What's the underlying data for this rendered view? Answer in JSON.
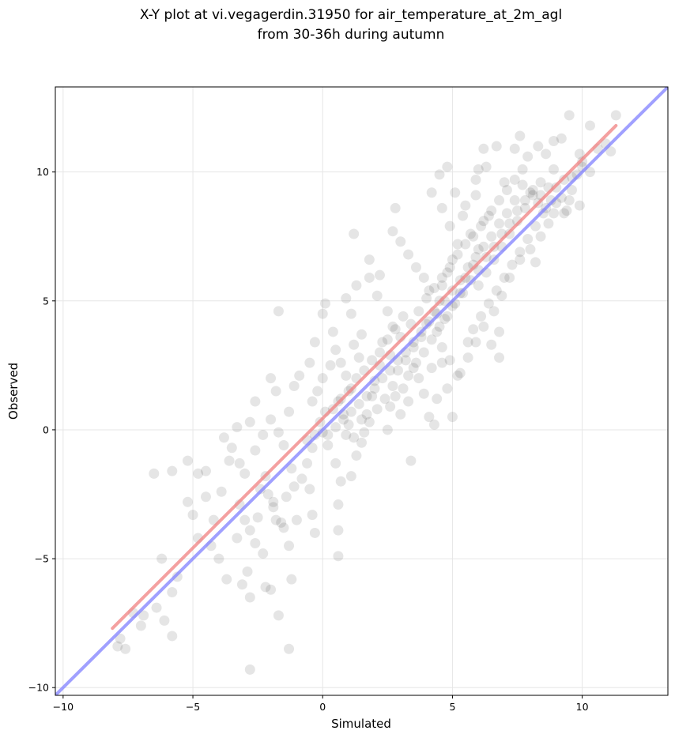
{
  "chart_data": {
    "type": "scatter",
    "title": "X-Y plot at vi.vegagerdin.31950 for air_temperature_at_2m_agl",
    "subtitle": "from 30-36h during autumn",
    "xlabel": "Simulated",
    "ylabel": "Observed",
    "xlim": [
      -10.3,
      13.3
    ],
    "ylim": [
      -10.3,
      13.3
    ],
    "xticks": [
      -10,
      -5,
      0,
      5,
      10
    ],
    "yticks": [
      -10,
      -5,
      0,
      5,
      10
    ],
    "xtick_labels": [
      "−10",
      "−5",
      "0",
      "5",
      "10"
    ],
    "ytick_labels": [
      "−10",
      "−5",
      "0",
      "5",
      "10"
    ],
    "grid": true,
    "point_color": "#000000",
    "point_alpha": 0.1,
    "regression_line": {
      "color": "#f08080",
      "x": [
        -8.1,
        11.3
      ],
      "y": [
        -7.7,
        11.8
      ]
    },
    "identity_line": {
      "color": "#8080ff",
      "x": [
        -10.3,
        13.3
      ],
      "y": [
        -10.3,
        13.3
      ]
    },
    "points": [
      [
        -7.9,
        -8.4
      ],
      [
        -7.6,
        -8.5
      ],
      [
        -7.8,
        -8.1
      ],
      [
        -7.3,
        -7.1
      ],
      [
        -7.0,
        -7.6
      ],
      [
        -6.9,
        -7.2
      ],
      [
        -6.4,
        -6.9
      ],
      [
        -6.1,
        -7.4
      ],
      [
        -5.8,
        -8.0
      ],
      [
        -5.8,
        -6.3
      ],
      [
        -5.6,
        -5.7
      ],
      [
        -6.2,
        -5.0
      ],
      [
        -6.5,
        -1.7
      ],
      [
        -5.8,
        -1.6
      ],
      [
        -5.2,
        -1.2
      ],
      [
        -4.8,
        -1.7
      ],
      [
        -4.5,
        -1.6
      ],
      [
        -5.2,
        -2.8
      ],
      [
        -5.0,
        -3.3
      ],
      [
        -4.8,
        -4.2
      ],
      [
        -4.2,
        -3.5
      ],
      [
        -4.5,
        -2.6
      ],
      [
        -3.9,
        -2.4
      ],
      [
        -3.6,
        -1.2
      ],
      [
        -3.2,
        -1.3
      ],
      [
        -3.5,
        -0.7
      ],
      [
        -3.8,
        -0.3
      ],
      [
        -3.3,
        0.1
      ],
      [
        -2.8,
        0.3
      ],
      [
        -2.6,
        1.1
      ],
      [
        -2.3,
        -0.2
      ],
      [
        -2.0,
        0.4
      ],
      [
        -1.8,
        1.5
      ],
      [
        -2.0,
        2.0
      ],
      [
        -1.7,
        -0.1
      ],
      [
        -1.5,
        -0.6
      ],
      [
        -1.3,
        0.7
      ],
      [
        -1.1,
        1.7
      ],
      [
        -0.9,
        2.1
      ],
      [
        -1.7,
        4.6
      ],
      [
        -3.2,
        -2.9
      ],
      [
        -3.0,
        -3.5
      ],
      [
        -2.8,
        -3.9
      ],
      [
        -2.6,
        -4.4
      ],
      [
        -2.3,
        -4.8
      ],
      [
        -2.9,
        -5.5
      ],
      [
        -3.1,
        -6.0
      ],
      [
        -2.8,
        -6.5
      ],
      [
        -2.2,
        -6.1
      ],
      [
        -2.0,
        -6.2
      ],
      [
        -1.7,
        -7.2
      ],
      [
        -1.3,
        -8.5
      ],
      [
        -2.8,
        -9.3
      ],
      [
        -1.2,
        -5.8
      ],
      [
        -1.3,
        -4.5
      ],
      [
        -1.5,
        -3.8
      ],
      [
        -1.8,
        -3.5
      ],
      [
        -1.9,
        -3.0
      ],
      [
        -2.1,
        -2.5
      ],
      [
        -1.4,
        -2.6
      ],
      [
        -1.1,
        -2.2
      ],
      [
        -1.2,
        -1.5
      ],
      [
        -0.8,
        -1.9
      ],
      [
        -0.6,
        -1.3
      ],
      [
        -0.4,
        -0.7
      ],
      [
        -0.5,
        -2.3
      ],
      [
        -0.4,
        -3.3
      ],
      [
        -0.3,
        -4.0
      ],
      [
        -1.0,
        -3.5
      ],
      [
        -4.3,
        -4.5
      ],
      [
        -3.7,
        -5.8
      ],
      [
        -4.0,
        -5.0
      ],
      [
        -3.3,
        -4.2
      ],
      [
        -2.5,
        -3.4
      ],
      [
        -2.4,
        -2.3
      ],
      [
        -3.0,
        -1.7
      ],
      [
        -2.6,
        -0.8
      ],
      [
        -2.2,
        -1.8
      ],
      [
        -1.9,
        -2.8
      ],
      [
        -1.6,
        -3.6
      ],
      [
        -0.6,
        -0.4
      ],
      [
        -0.3,
        -0.2
      ],
      [
        0.0,
        -0.1
      ],
      [
        0.2,
        -0.6
      ],
      [
        -0.1,
        0.3
      ],
      [
        0.1,
        0.7
      ],
      [
        -0.4,
        1.1
      ],
      [
        -0.2,
        1.5
      ],
      [
        0.0,
        2.0
      ],
      [
        0.3,
        2.5
      ],
      [
        -0.5,
        2.6
      ],
      [
        -0.3,
        3.4
      ],
      [
        0.0,
        4.5
      ],
      [
        0.1,
        4.9
      ],
      [
        0.4,
        3.8
      ],
      [
        0.5,
        3.1
      ],
      [
        0.7,
        2.6
      ],
      [
        0.9,
        2.1
      ],
      [
        1.1,
        1.6
      ],
      [
        0.6,
        1.1
      ],
      [
        0.8,
        0.6
      ],
      [
        1.0,
        0.2
      ],
      [
        1.2,
        -0.3
      ],
      [
        0.5,
        -1.3
      ],
      [
        0.7,
        -2.0
      ],
      [
        0.6,
        -2.9
      ],
      [
        0.6,
        -3.9
      ],
      [
        0.6,
        -4.9
      ],
      [
        1.1,
        -1.8
      ],
      [
        1.3,
        -1.0
      ],
      [
        1.5,
        -0.5
      ],
      [
        1.6,
        -0.1
      ],
      [
        1.7,
        0.6
      ],
      [
        1.9,
        1.3
      ],
      [
        2.0,
        1.9
      ],
      [
        2.2,
        2.5
      ],
      [
        1.4,
        2.8
      ],
      [
        1.2,
        3.3
      ],
      [
        1.5,
        3.7
      ],
      [
        1.1,
        4.5
      ],
      [
        0.9,
        5.1
      ],
      [
        1.3,
        5.6
      ],
      [
        1.8,
        5.9
      ],
      [
        2.1,
        5.2
      ],
      [
        2.5,
        4.6
      ],
      [
        2.7,
        4.0
      ],
      [
        2.3,
        3.4
      ],
      [
        2.6,
        2.9
      ],
      [
        2.9,
        2.3
      ],
      [
        3.1,
        1.6
      ],
      [
        3.3,
        1.1
      ],
      [
        3.0,
        0.6
      ],
      [
        2.6,
        0.9
      ],
      [
        2.5,
        0.0
      ],
      [
        3.4,
        -1.2
      ],
      [
        2.8,
        1.3
      ],
      [
        3.2,
        2.7
      ],
      [
        3.5,
        3.2
      ],
      [
        3.8,
        3.6
      ],
      [
        4.0,
        4.1
      ],
      [
        4.3,
        4.6
      ],
      [
        4.5,
        5.0
      ],
      [
        4.1,
        5.4
      ],
      [
        3.9,
        5.9
      ],
      [
        3.6,
        6.3
      ],
      [
        3.3,
        6.8
      ],
      [
        3.0,
        7.3
      ],
      [
        2.7,
        7.7
      ],
      [
        2.8,
        8.6
      ],
      [
        1.2,
        7.6
      ],
      [
        1.8,
        6.6
      ],
      [
        2.2,
        6.0
      ],
      [
        4.6,
        5.6
      ],
      [
        4.8,
        6.1
      ],
      [
        5.0,
        6.6
      ],
      [
        5.2,
        7.2
      ],
      [
        4.9,
        7.9
      ],
      [
        4.6,
        8.6
      ],
      [
        4.2,
        9.2
      ],
      [
        4.5,
        9.9
      ],
      [
        4.8,
        10.2
      ],
      [
        5.1,
        9.2
      ],
      [
        5.4,
        8.3
      ],
      [
        5.7,
        7.6
      ],
      [
        6.0,
        7.0
      ],
      [
        5.8,
        6.4
      ],
      [
        5.5,
        5.9
      ],
      [
        5.3,
        5.3
      ],
      [
        5.0,
        4.8
      ],
      [
        4.7,
        4.3
      ],
      [
        4.4,
        3.8
      ],
      [
        4.6,
        3.2
      ],
      [
        4.9,
        2.7
      ],
      [
        5.2,
        2.1
      ],
      [
        4.8,
        1.6
      ],
      [
        4.4,
        1.2
      ],
      [
        4.1,
        0.5
      ],
      [
        4.3,
        0.2
      ],
      [
        5.0,
        0.5
      ],
      [
        4.6,
        2.6
      ],
      [
        3.7,
        2.0
      ],
      [
        3.9,
        1.4
      ],
      [
        3.5,
        2.4
      ],
      [
        5.6,
        3.4
      ],
      [
        5.8,
        3.9
      ],
      [
        6.1,
        4.4
      ],
      [
        6.4,
        4.9
      ],
      [
        6.7,
        5.4
      ],
      [
        7.0,
        5.9
      ],
      [
        7.3,
        6.4
      ],
      [
        7.6,
        6.9
      ],
      [
        7.9,
        7.4
      ],
      [
        8.2,
        7.9
      ],
      [
        8.5,
        8.4
      ],
      [
        8.8,
        8.9
      ],
      [
        9.0,
        9.4
      ],
      [
        9.3,
        9.7
      ],
      [
        8.9,
        10.1
      ],
      [
        8.4,
        9.6
      ],
      [
        8.1,
        9.1
      ],
      [
        7.8,
        8.6
      ],
      [
        7.5,
        8.1
      ],
      [
        7.2,
        7.6
      ],
      [
        6.9,
        7.1
      ],
      [
        6.6,
        6.6
      ],
      [
        6.3,
        6.1
      ],
      [
        6.0,
        5.6
      ],
      [
        6.2,
        8.1
      ],
      [
        6.5,
        8.5
      ],
      [
        6.8,
        8.9
      ],
      [
        7.1,
        9.3
      ],
      [
        7.4,
        9.7
      ],
      [
        7.7,
        10.1
      ],
      [
        7.9,
        10.6
      ],
      [
        8.3,
        11.0
      ],
      [
        8.6,
        10.7
      ],
      [
        9.2,
        11.3
      ],
      [
        9.5,
        12.2
      ],
      [
        10.3,
        11.8
      ],
      [
        10.6,
        10.9
      ],
      [
        10.9,
        11.1
      ],
      [
        11.3,
        12.2
      ],
      [
        11.1,
        10.8
      ],
      [
        10.0,
        10.4
      ],
      [
        9.8,
        9.9
      ],
      [
        9.6,
        9.3
      ],
      [
        9.9,
        8.7
      ],
      [
        9.4,
        8.5
      ],
      [
        8.7,
        8.0
      ],
      [
        8.4,
        7.5
      ],
      [
        8.0,
        7.0
      ],
      [
        8.2,
        6.5
      ],
      [
        7.6,
        6.6
      ],
      [
        7.2,
        5.9
      ],
      [
        6.9,
        5.2
      ],
      [
        6.6,
        4.6
      ],
      [
        6.2,
        4.0
      ],
      [
        5.9,
        3.4
      ],
      [
        5.6,
        2.8
      ],
      [
        5.3,
        2.2
      ],
      [
        6.8,
        3.8
      ],
      [
        6.5,
        3.3
      ],
      [
        6.8,
        2.8
      ],
      [
        7.0,
        9.6
      ],
      [
        7.4,
        10.9
      ],
      [
        6.7,
        11.0
      ],
      [
        6.3,
        10.2
      ],
      [
        5.9,
        9.1
      ],
      [
        5.5,
        8.7
      ],
      [
        5.9,
        9.7
      ],
      [
        6.0,
        10.1
      ],
      [
        6.2,
        10.9
      ],
      [
        7.6,
        11.4
      ],
      [
        8.9,
        11.2
      ],
      [
        9.9,
        10.7
      ],
      [
        10.3,
        10.0
      ],
      [
        9.5,
        8.9
      ],
      [
        9.2,
        9.0
      ],
      [
        8.9,
        8.4
      ],
      [
        8.6,
        8.6
      ],
      [
        8.3,
        8.8
      ],
      [
        8.0,
        9.2
      ],
      [
        7.7,
        9.5
      ],
      [
        7.4,
        8.9
      ],
      [
        7.1,
        8.4
      ],
      [
        6.8,
        8.0
      ],
      [
        6.5,
        7.5
      ],
      [
        6.2,
        7.1
      ],
      [
        5.9,
        6.7
      ],
      [
        5.6,
        6.3
      ],
      [
        5.3,
        5.8
      ],
      [
        5.0,
        5.4
      ],
      [
        4.7,
        5.0
      ],
      [
        4.4,
        4.5
      ],
      [
        4.1,
        4.2
      ],
      [
        3.8,
        3.8
      ],
      [
        3.5,
        3.4
      ],
      [
        3.2,
        3.0
      ],
      [
        2.9,
        2.7
      ],
      [
        2.6,
        2.3
      ],
      [
        2.3,
        2.0
      ],
      [
        2.0,
        1.6
      ],
      [
        1.7,
        1.3
      ],
      [
        1.4,
        1.0
      ],
      [
        1.1,
        0.7
      ],
      [
        0.8,
        0.4
      ],
      [
        0.5,
        0.1
      ],
      [
        0.2,
        -0.2
      ],
      [
        3.0,
        3.6
      ],
      [
        3.4,
        4.1
      ],
      [
        3.7,
        4.6
      ],
      [
        4.0,
        5.1
      ],
      [
        4.3,
        5.5
      ],
      [
        4.6,
        5.9
      ],
      [
        4.9,
        6.3
      ],
      [
        5.2,
        6.8
      ],
      [
        5.5,
        7.2
      ],
      [
        5.8,
        7.5
      ],
      [
        6.1,
        7.9
      ],
      [
        6.4,
        8.3
      ],
      [
        2.2,
        3.0
      ],
      [
        2.5,
        3.5
      ],
      [
        2.8,
        3.9
      ],
      [
        3.1,
        4.4
      ],
      [
        1.6,
        2.3
      ],
      [
        1.9,
        2.7
      ],
      [
        1.3,
        2.0
      ],
      [
        1.0,
        1.5
      ],
      [
        0.7,
        1.2
      ],
      [
        0.4,
        0.8
      ],
      [
        4.2,
        3.5
      ],
      [
        4.5,
        4.0
      ],
      [
        4.8,
        4.4
      ],
      [
        5.1,
        4.9
      ],
      [
        5.4,
        5.3
      ],
      [
        5.7,
        5.8
      ],
      [
        6.0,
        6.2
      ],
      [
        6.3,
        6.7
      ],
      [
        6.6,
        7.1
      ],
      [
        6.9,
        7.6
      ],
      [
        7.2,
        8.0
      ],
      [
        7.5,
        8.5
      ],
      [
        7.8,
        8.9
      ],
      [
        8.1,
        9.3
      ],
      [
        8.4,
        9.1
      ],
      [
        8.7,
        9.4
      ],
      [
        9.0,
        8.8
      ],
      [
        9.3,
        8.4
      ],
      [
        9.6,
        9.8
      ],
      [
        10.0,
        10.2
      ],
      [
        3.6,
        2.6
      ],
      [
        3.9,
        3.0
      ],
      [
        4.2,
        2.4
      ],
      [
        3.3,
        2.1
      ],
      [
        2.7,
        1.7
      ],
      [
        2.4,
        1.2
      ],
      [
        2.1,
        0.8
      ],
      [
        1.8,
        0.3
      ],
      [
        1.5,
        0.4
      ],
      [
        0.9,
        -0.2
      ]
    ]
  }
}
